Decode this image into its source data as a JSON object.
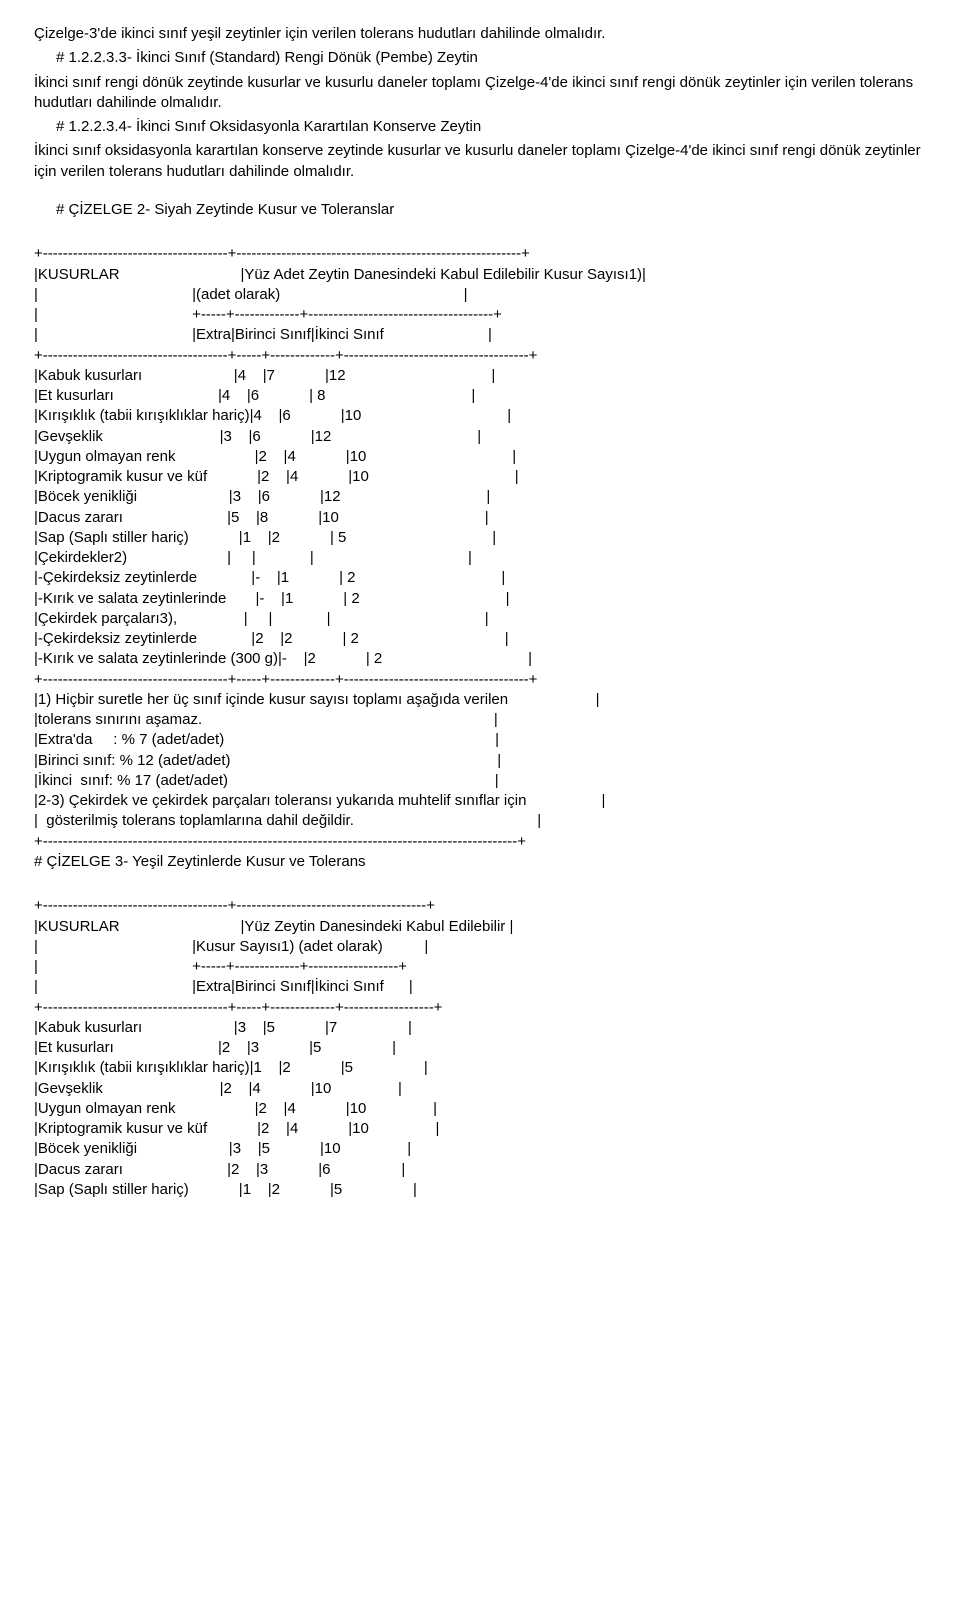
{
  "p1": "Çizelge-3'de ikinci sınıf yeşil zeytinler için verilen tolerans hudutları dahilinde olmalıdır.",
  "h1": "# 1.2.2.3.3- İkinci Sınıf (Standard) Rengi Dönük (Pembe) Zeytin",
  "p2": "İkinci sınıf rengi dönük zeytinde kusurlar ve kusurlu daneler toplamı Çizelge-4'de ikinci sınıf rengi dönük zeytinler  için verilen tolerans hudutları dahilinde olmalıdır.",
  "h2": "# 1.2.2.3.4- İkinci Sınıf Oksidasyonla Karartılan Konserve Zeytin",
  "p3": "İkinci sınıf oksidasyonla karartılan konserve zeytinde kusurlar ve kusurlu daneler toplamı Çizelge-4'de ikinci sınıf rengi dönük zeytinler için verilen tolerans hudutları dahilinde olmalıdır.",
  "h3": "# ÇİZELGE 2- Siyah Zeytinde Kusur ve Toleranslar",
  "t2_l1": "+-------------------------------------+---------------------------------------------------------+",
  "t2_l2": "|KUSURLAR                             |Yüz Adet Zeytin Danesindeki Kabul Edilebilir Kusur Sayısı1)|",
  "t2_l3": "|                                     |(adet olarak)                                            |",
  "t2_l4": "|                                     +-----+-------------+-------------------------------------+",
  "t2_l5": "|                                     |Extra|Birinci Sınıf|İkinci Sınıf                         |",
  "t2_l6": "+-------------------------------------+-----+-------------+-------------------------------------+",
  "t2_l7": "|Kabuk kusurları                      |4    |7            |12                                   |",
  "t2_l8": "|Et kusurları                         |4    |6            | 8                                   |",
  "t2_l9": "|Kırışıklık (tabii kırışıklıklar hariç)|4    |6            |10                                   |",
  "t2_l10": "|Gevşeklik                            |3    |6            |12                                   |",
  "t2_l11": "|Uygun olmayan renk                   |2    |4            |10                                   |",
  "t2_l12": "|Kriptogramik kusur ve küf            |2    |4            |10                                   |",
  "t2_l13": "|Böcek yenikliği                      |3    |6            |12                                   |",
  "t2_l14": "|Dacus zararı                         |5    |8            |10                                   |",
  "t2_l15": "|Sap (Saplı stiller hariç)            |1    |2            | 5                                   |",
  "t2_l16": "|Çekirdekler2)                        |     |             |                                     |",
  "t2_l17": "|-Çekirdeksiz zeytinlerde             |-    |1            | 2                                   |",
  "t2_l18": "|-Kırık ve salata zeytinlerinde       |-    |1            | 2                                   |",
  "t2_l19": "|Çekirdek parçaları3),                |     |             |                                     |",
  "t2_l20": "|-Çekirdeksiz zeytinlerde             |2    |2            | 2                                   |",
  "t2_l21": "|-Kırık ve salata zeytinlerinde (300 g)|-    |2            | 2                                   |",
  "t2_l22": "+-------------------------------------+-----+-------------+-------------------------------------+",
  "t2_l23": "|1) Hiçbir suretle her üç sınıf içinde kusur sayısı toplamı aşağıda verilen                     |",
  "t2_l24": "|tolerans sınırını aşamaz.                                                                      |",
  "t2_l25": "|Extra'da     : % 7 (adet/adet)                                                                 |",
  "t2_l26": "|Birinci sınıf: % 12 (adet/adet)                                                                |",
  "t2_l27": "|İkinci  sınıf: % 17 (adet/adet)                                                                |",
  "t2_l28": "|2-3) Çekirdek ve çekirdek parçaları toleransı yukarıda muhtelif sınıflar için                  |",
  "t2_l29": "|  gösterilmiş tolerans toplamlarına dahil değildir.                                            |",
  "t2_l30": "+-----------------------------------------------------------------------------------------------+",
  "h4": "# ÇİZELGE 3- Yeşil Zeytinlerde Kusur ve Tolerans",
  "t3_l1": "+-------------------------------------+--------------------------------------+",
  "t3_l2": "|KUSURLAR                             |Yüz Zeytin Danesindeki Kabul Edilebilir |",
  "t3_l3": "|                                     |Kusur Sayısı1) (adet olarak)          |",
  "t3_l4": "|                                     +-----+-------------+------------------+",
  "t3_l5": "|                                     |Extra|Birinci Sınıf|İkinci Sınıf      |",
  "t3_l6": "+-------------------------------------+-----+-------------+------------------+",
  "t3_l7": "|Kabuk kusurları                      |3    |5            |7                 |",
  "t3_l8": "|Et kusurları                         |2    |3            |5                 |",
  "t3_l9": "|Kırışıklık (tabii kırışıklıklar hariç)|1    |2            |5                 |",
  "t3_l10": "|Gevşeklik                            |2    |4            |10                |",
  "t3_l11": "|Uygun olmayan renk                   |2    |4            |10                |",
  "t3_l12": "|Kriptogramik kusur ve küf            |2    |4            |10                |",
  "t3_l13": "|Böcek yenikliği                      |3    |5            |10                |",
  "t3_l14": "|Dacus zararı                         |2    |3            |6                 |",
  "t3_l15": "|Sap (Saplı stiller hariç)            |1    |2            |5                 |"
}
